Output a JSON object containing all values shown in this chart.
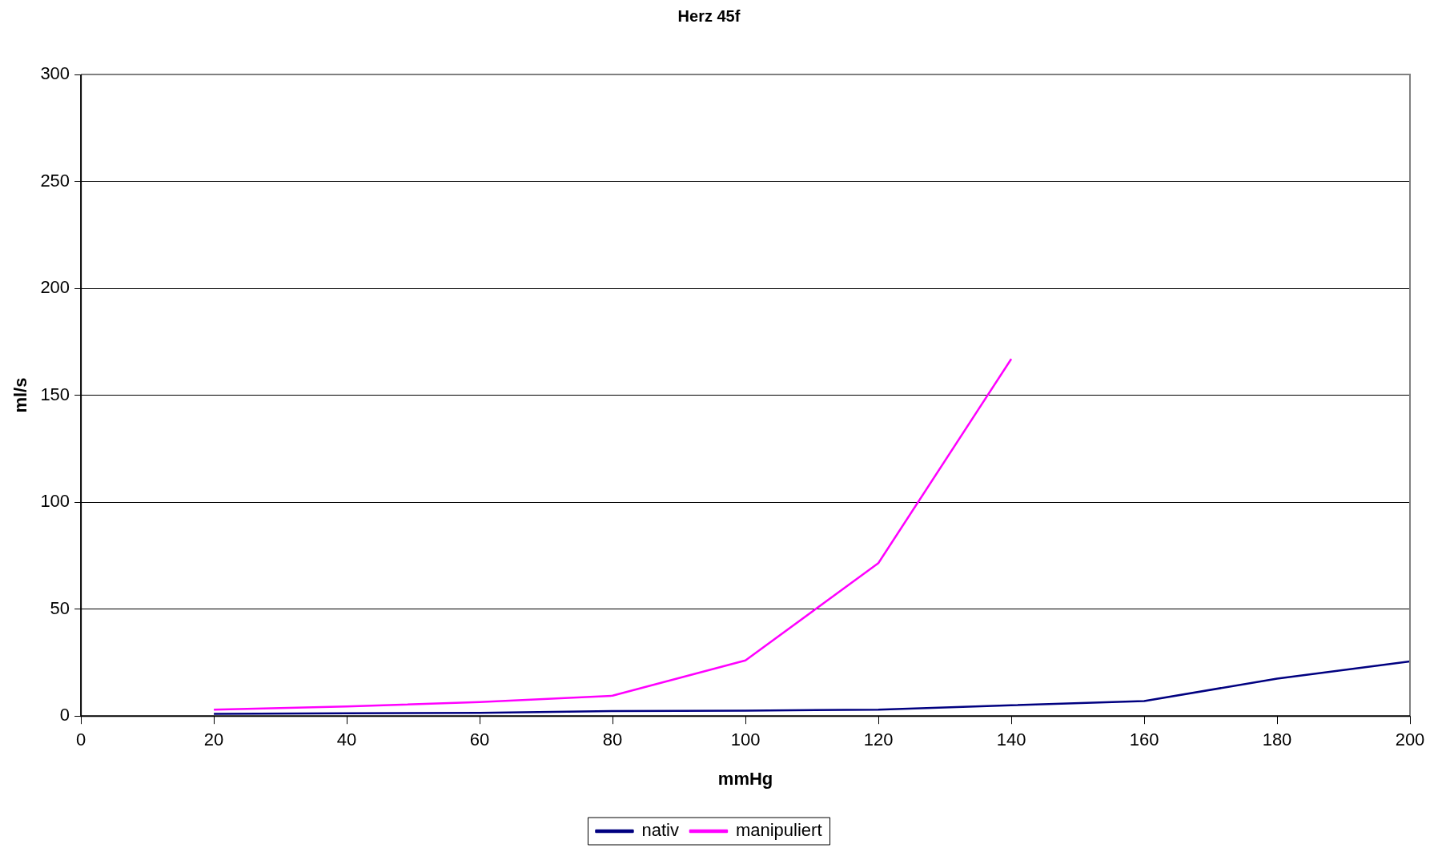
{
  "chart_data": {
    "type": "line",
    "title": "Herz 45f",
    "xlabel": "mmHg",
    "ylabel": "ml/s",
    "xlim": [
      0,
      200
    ],
    "xticks": [
      0,
      20,
      40,
      60,
      80,
      100,
      120,
      140,
      160,
      180,
      200
    ],
    "ylim": [
      0,
      300
    ],
    "yticks": [
      0,
      50,
      100,
      150,
      200,
      250,
      300
    ],
    "grid": "y",
    "legend": "bottom",
    "marker": "none",
    "line_style": "solid",
    "series": [
      {
        "name": "nativ",
        "color": "#000080",
        "x": [
          20,
          40,
          60,
          80,
          100,
          120,
          140,
          160,
          180,
          200
        ],
        "values": [
          1,
          1.3,
          1.5,
          2.3,
          2.5,
          3,
          5,
          7,
          17.5,
          25.5
        ]
      },
      {
        "name": "manipuliert",
        "color": "#ff00ff",
        "x": [
          20,
          40,
          60,
          80,
          100,
          120,
          140
        ],
        "values": [
          3,
          4.5,
          6.5,
          9.5,
          26,
          71.5,
          167
        ]
      }
    ]
  }
}
